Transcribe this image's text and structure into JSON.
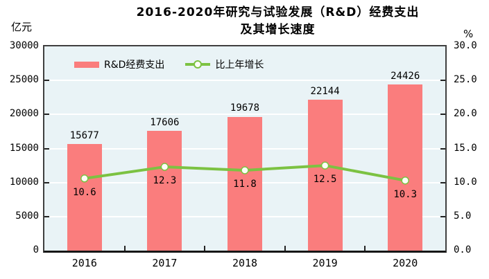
{
  "title": {
    "line1": "2016-2020年研究与试验发展（R&D）经费支出",
    "line2": "及其增长速度"
  },
  "colors": {
    "bar": "#fa7d7d",
    "line": "#7cc242",
    "marker_fill": "#fdfef7",
    "plot_background": "#e9f3f6",
    "gridline": "#ffffff",
    "frame": "#3f3f3f",
    "text": "#000000"
  },
  "chart_data": {
    "type": "combo",
    "title": "2016-2020年研究与试验发展（R&D）经费支出及其增长速度",
    "categories": [
      "2016",
      "2017",
      "2018",
      "2019",
      "2020"
    ],
    "series": [
      {
        "name": "R&D经费支出",
        "type": "bar",
        "axis": "left",
        "color": "#fa7d7d",
        "values": [
          15677,
          17606,
          19678,
          22144,
          24426
        ],
        "labels": [
          "15677",
          "17606",
          "19678",
          "22144",
          "24426"
        ]
      },
      {
        "name": "比上年增长",
        "type": "line",
        "axis": "right",
        "color": "#7cc242",
        "values": [
          10.6,
          12.3,
          11.8,
          12.5,
          10.3
        ],
        "labels": [
          "10.6",
          "12.3",
          "11.8",
          "12.5",
          "10.3"
        ]
      }
    ],
    "left_axis": {
      "unit": "亿元",
      "min": 0,
      "max": 30000,
      "step": 5000
    },
    "right_axis": {
      "unit": "%",
      "min": 0,
      "max": 30,
      "step": 5,
      "decimals": 1
    },
    "grid": true,
    "legend_position": "top-left-inside"
  }
}
